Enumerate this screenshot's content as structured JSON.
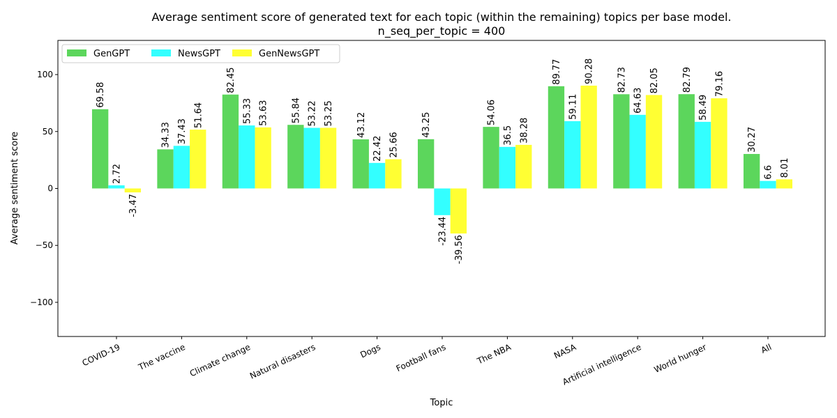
{
  "chart_data": {
    "type": "bar",
    "title_line1": "Average sentiment score of generated text for each topic (within the remaining) topics per base model.",
    "title_line2": "n_seq_per_topic = 400",
    "xlabel": "Topic",
    "ylabel": "Average sentiment score",
    "ylim": [
      -130,
      130
    ],
    "yticks": [
      -100,
      -50,
      0,
      50,
      100
    ],
    "grid": false,
    "legend_position": "top-left",
    "categories": [
      "COVID-19",
      "The vaccine",
      "Climate change",
      "Natural disasters",
      "Dogs",
      "Football fans",
      "The NBA",
      "NASA",
      "Artificial intelligence",
      "World hunger",
      "All"
    ],
    "series": [
      {
        "name": "GenGPT",
        "color": "#5cd65c",
        "values": [
          69.58,
          34.33,
          82.45,
          55.84,
          43.12,
          43.25,
          54.06,
          89.77,
          82.73,
          82.79,
          30.27
        ]
      },
      {
        "name": "NewsGPT",
        "color": "#33ffff",
        "values": [
          2.72,
          37.43,
          55.33,
          53.22,
          22.42,
          -23.44,
          36.5,
          59.11,
          64.63,
          58.49,
          6.6
        ]
      },
      {
        "name": "GenNewsGPT",
        "color": "#ffff33",
        "values": [
          -3.47,
          51.64,
          53.63,
          53.25,
          25.66,
          -39.56,
          38.28,
          90.28,
          82.05,
          79.16,
          8.01
        ]
      }
    ]
  }
}
